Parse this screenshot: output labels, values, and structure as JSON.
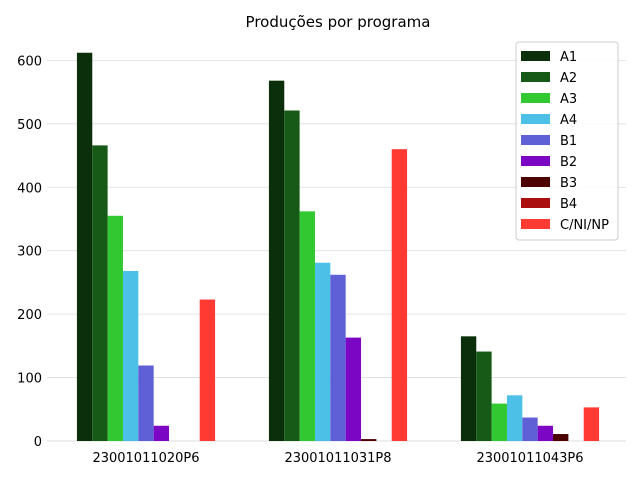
{
  "chart_data": {
    "type": "bar",
    "title": "Produções por programa",
    "xlabel": "",
    "ylabel": "",
    "ylim": [
      0,
      640
    ],
    "yticks": [
      0,
      100,
      200,
      300,
      400,
      500,
      600
    ],
    "grid": "horizontal",
    "legend_position": "top-right",
    "categories": [
      "23001011020P6",
      "23001011031P8",
      "23001011043P6"
    ],
    "series": [
      {
        "name": "A1",
        "color": "#0b2e0b",
        "values": [
          612,
          568,
          165
        ]
      },
      {
        "name": "A2",
        "color": "#175a17",
        "values": [
          466,
          521,
          141
        ]
      },
      {
        "name": "A3",
        "color": "#32c832",
        "values": [
          355,
          362,
          59
        ]
      },
      {
        "name": "A4",
        "color": "#4cc0e6",
        "values": [
          268,
          281,
          72
        ]
      },
      {
        "name": "B1",
        "color": "#6060d6",
        "values": [
          119,
          262,
          37
        ]
      },
      {
        "name": "B2",
        "color": "#7b06c4",
        "values": [
          24,
          163,
          24
        ]
      },
      {
        "name": "B3",
        "color": "#4c0000",
        "values": [
          0,
          3,
          11
        ]
      },
      {
        "name": "B4",
        "color": "#aa0e0e",
        "values": [
          0,
          0,
          0
        ]
      },
      {
        "name": "C/NI/NP",
        "color": "#ff3a33",
        "values": [
          223,
          460,
          53
        ]
      }
    ]
  }
}
